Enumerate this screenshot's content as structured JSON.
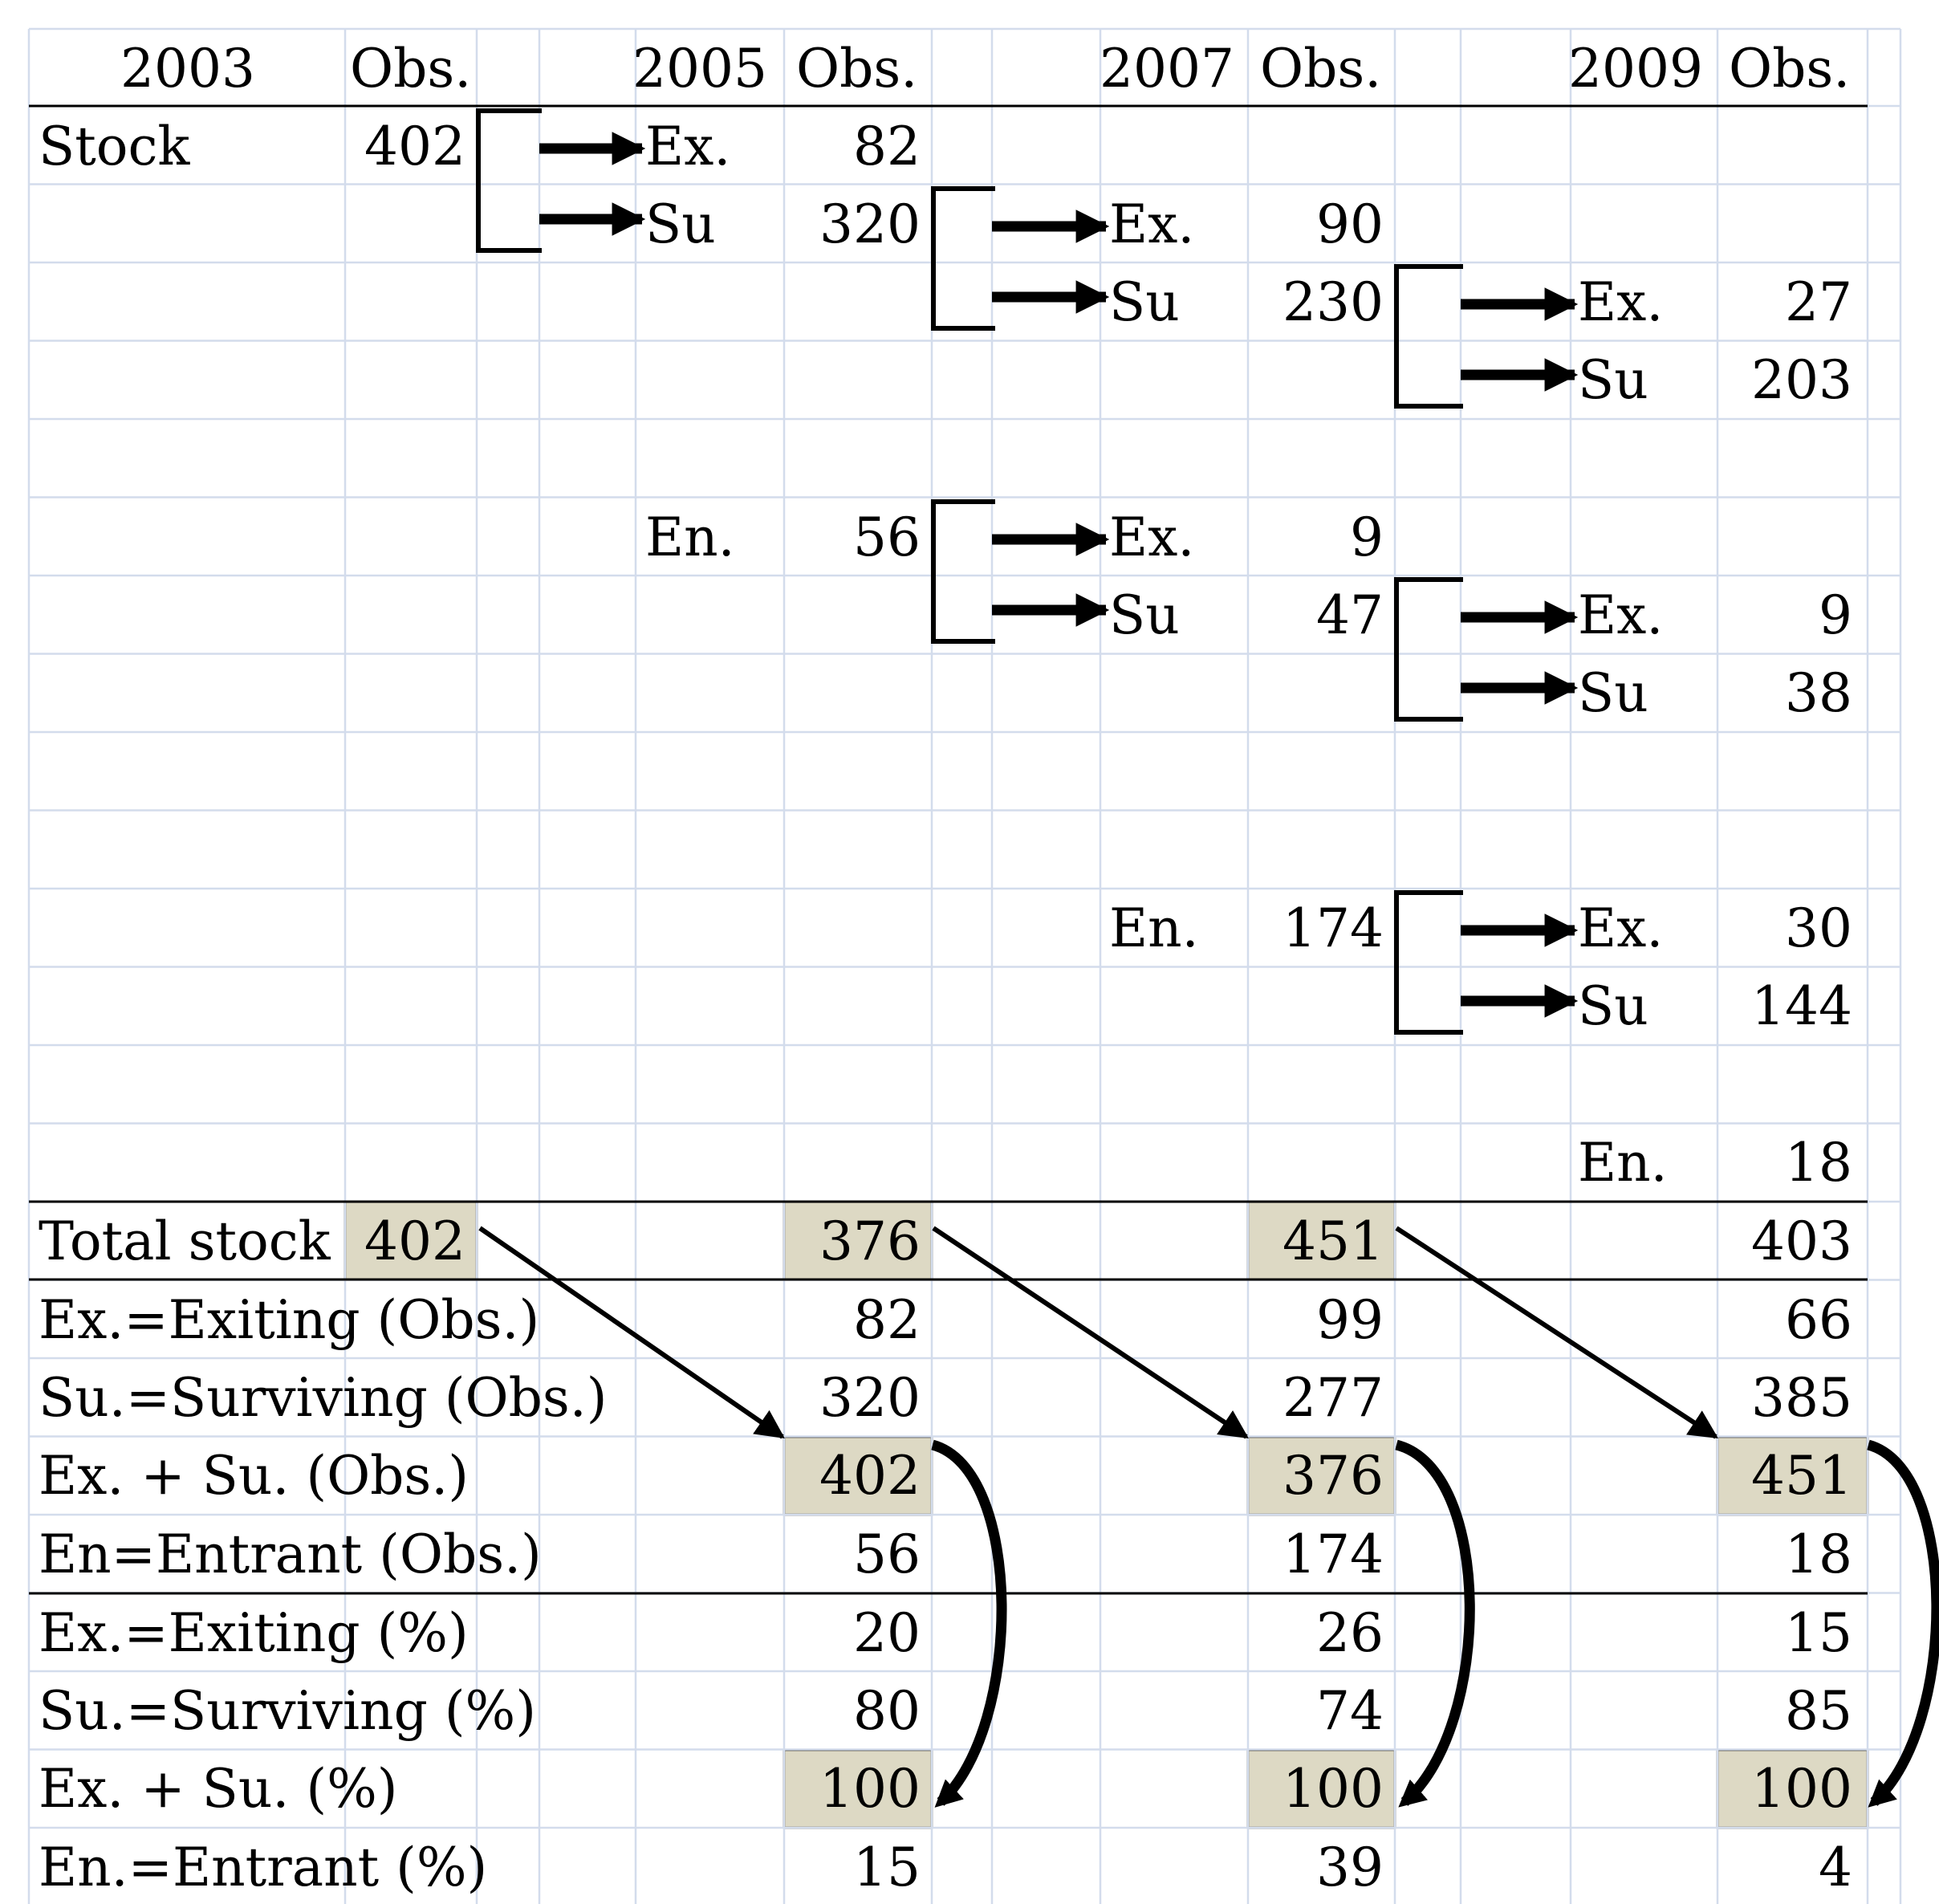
{
  "header": {
    "y2003": "2003",
    "obs_a": "Obs.",
    "y2005": "2005",
    "obs_b": "Obs.",
    "y2007": "2007",
    "obs_c": "Obs.",
    "y2009": "2009",
    "obs_d": "Obs."
  },
  "flow": {
    "stock_label": "Stock",
    "stock_2003": "402",
    "ex_2005_label": "Ex.",
    "ex_2005": "82",
    "su_2005_label": "Su",
    "su_2005": "320",
    "ex_2007_a_label": "Ex.",
    "ex_2007_a": "90",
    "su_2007_a_label": "Su",
    "su_2007_a": "230",
    "ex_2009_a_label": "Ex.",
    "ex_2009_a": "27",
    "su_2009_a_label": "Su",
    "su_2009_a": "203",
    "en_2005_label": "En.",
    "en_2005": "56",
    "ex_2007_b_label": "Ex.",
    "ex_2007_b": "9",
    "su_2007_b_label": "Su",
    "su_2007_b": "47",
    "ex_2009_b_label": "Ex.",
    "ex_2009_b": "9",
    "su_2009_b_label": "Su",
    "su_2009_b": "38",
    "en_2007_label": "En.",
    "en_2007": "174",
    "ex_2009_c_label": "Ex.",
    "ex_2009_c": "30",
    "su_2009_c_label": "Su",
    "su_2009_c": "144",
    "en_2009_label": "En.",
    "en_2009": "18"
  },
  "summary": {
    "total_stock": {
      "label": "Total stock",
      "v2003": "402",
      "v2005": "376",
      "v2007": "451",
      "v2009": "403"
    },
    "exiting_obs": {
      "label": "Ex.=Exiting (Obs.)",
      "v2005": "82",
      "v2007": "99",
      "v2009": "66"
    },
    "surviving_obs": {
      "label": "Su.=Surviving (Obs.)",
      "v2005": "320",
      "v2007": "277",
      "v2009": "385"
    },
    "ex_su_obs": {
      "label": "Ex. + Su. (Obs.)",
      "v2005": "402",
      "v2007": "376",
      "v2009": "451"
    },
    "entrant_obs": {
      "label": "En=Entrant (Obs.)",
      "v2005": "56",
      "v2007": "174",
      "v2009": "18"
    },
    "exiting_pct": {
      "label": "Ex.=Exiting (%)",
      "v2005": "20",
      "v2007": "26",
      "v2009": "15"
    },
    "surviving_pct": {
      "label": "Su.=Surviving (%)",
      "v2005": "80",
      "v2007": "74",
      "v2009": "85"
    },
    "ex_su_pct": {
      "label": "Ex. + Su. (%)",
      "v2005": "100",
      "v2007": "100",
      "v2009": "100"
    },
    "entrant_pct": {
      "label": "En.=Entrant (%)",
      "v2005": "15",
      "v2007": "39",
      "v2009": "4"
    }
  },
  "colors": {
    "highlight": "#ddd9c4",
    "gridline": "#d3dcec",
    "ink": "#000000"
  }
}
